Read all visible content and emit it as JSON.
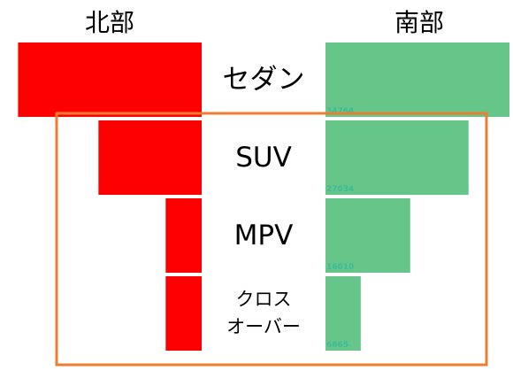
{
  "chart_data": {
    "type": "butterfly-bar",
    "categories": [
      "セダン",
      "SUV",
      "MPV",
      "クロス\nオーバー"
    ],
    "series": [
      {
        "name": "北部",
        "color": "#ff0000",
        "values": [
          34700,
          19500,
          6800,
          6800
        ]
      },
      {
        "name": "南部",
        "color": "#66c68a",
        "values": [
          34764,
          27034,
          16010,
          6665
        ]
      }
    ],
    "label_color": "#3dbb9a"
  }
}
